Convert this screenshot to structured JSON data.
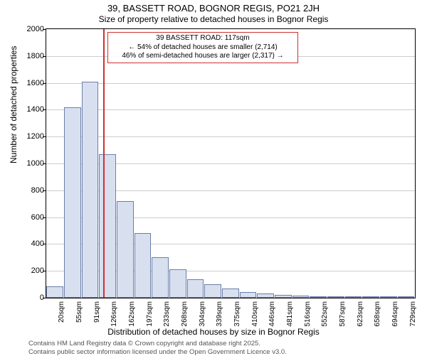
{
  "titles": {
    "line1": "39, BASSETT ROAD, BOGNOR REGIS, PO21 2JH",
    "line2": "Size of property relative to detached houses in Bognor Regis"
  },
  "chart": {
    "type": "histogram",
    "ylabel": "Number of detached properties",
    "xlabel": "Distribution of detached houses by size in Bognor Regis",
    "ylim": [
      0,
      2000
    ],
    "ytick_step": 200,
    "bar_fill": "#d8e0f0",
    "bar_border": "#6b7fa8",
    "grid_color": "#cccccc",
    "background_color": "#ffffff",
    "x_categories": [
      "20sqm",
      "55sqm",
      "91sqm",
      "126sqm",
      "162sqm",
      "197sqm",
      "233sqm",
      "268sqm",
      "304sqm",
      "339sqm",
      "375sqm",
      "410sqm",
      "446sqm",
      "481sqm",
      "516sqm",
      "552sqm",
      "587sqm",
      "623sqm",
      "658sqm",
      "694sqm",
      "729sqm"
    ],
    "values": [
      85,
      1420,
      1610,
      1070,
      720,
      480,
      300,
      210,
      140,
      100,
      70,
      45,
      30,
      20,
      15,
      10,
      8,
      6,
      5,
      4,
      3
    ],
    "reference_line": {
      "x_value_sqm": 117,
      "color": "#d03030"
    },
    "annotation": {
      "border_color": "#d03030",
      "lines": [
        "39 BASSETT ROAD: 117sqm",
        "← 54% of detached houses are smaller (2,714)",
        "46% of semi-detached houses are larger (2,317) →"
      ]
    }
  },
  "footnotes": {
    "line1": "Contains HM Land Registry data © Crown copyright and database right 2025.",
    "line2": "Contains public sector information licensed under the Open Government Licence v3.0."
  }
}
